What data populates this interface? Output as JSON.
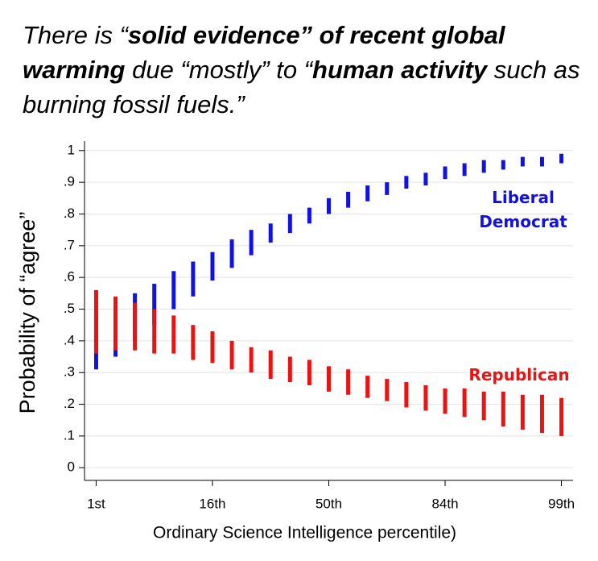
{
  "chart_data": {
    "type": "range",
    "title_parts": [
      {
        "text": "There is “",
        "bold": false
      },
      {
        "text": "solid evidence” of recent global warming",
        "bold": true
      },
      {
        "text": " due “mostly” to “",
        "bold": false
      },
      {
        "text": "human activity",
        "bold": true
      },
      {
        "text": " such as burning fossil fuels.”",
        "bold": false
      }
    ],
    "x_label": "Ordinary Science Intelligence percentile)",
    "y_label": "Probability of “agree”",
    "x": [
      -2,
      -1.8333,
      -1.6667,
      -1.5,
      -1.3333,
      -1.1667,
      -1,
      -0.8333,
      -0.6667,
      -0.5,
      -0.3333,
      -0.1667,
      0,
      0.1667,
      0.3333,
      0.5,
      0.6667,
      0.8333,
      1,
      1.1667,
      1.3333,
      1.5,
      1.6667,
      1.8333,
      2
    ],
    "series": [
      {
        "name": "Liberal Democrat",
        "color": "#1010e8",
        "low": [
          0.31,
          0.35,
          0.4,
          0.45,
          0.5,
          0.54,
          0.59,
          0.63,
          0.67,
          0.71,
          0.74,
          0.77,
          0.8,
          0.82,
          0.84,
          0.86,
          0.88,
          0.89,
          0.91,
          0.92,
          0.93,
          0.94,
          0.95,
          0.95,
          0.96
        ],
        "high": [
          0.48,
          0.51,
          0.55,
          0.58,
          0.62,
          0.65,
          0.68,
          0.72,
          0.75,
          0.77,
          0.8,
          0.82,
          0.85,
          0.87,
          0.89,
          0.9,
          0.92,
          0.93,
          0.95,
          0.96,
          0.97,
          0.97,
          0.98,
          0.98,
          0.99
        ]
      },
      {
        "name": "Republican",
        "color": "#ee1111",
        "low": [
          0.36,
          0.37,
          0.37,
          0.36,
          0.36,
          0.34,
          0.33,
          0.31,
          0.3,
          0.28,
          0.27,
          0.26,
          0.24,
          0.23,
          0.22,
          0.21,
          0.19,
          0.18,
          0.17,
          0.16,
          0.15,
          0.13,
          0.12,
          0.11,
          0.1
        ],
        "high": [
          0.56,
          0.54,
          0.52,
          0.5,
          0.48,
          0.45,
          0.43,
          0.4,
          0.38,
          0.37,
          0.35,
          0.34,
          0.32,
          0.31,
          0.29,
          0.28,
          0.27,
          0.26,
          0.25,
          0.25,
          0.24,
          0.24,
          0.23,
          0.23,
          0.22
        ]
      }
    ],
    "xlim": [
      -2.1,
      2.1
    ],
    "xticks": [
      {
        "value": -2,
        "label": "1st"
      },
      {
        "value": -1,
        "label": "16th"
      },
      {
        "value": 0,
        "label": "50th"
      },
      {
        "value": 1,
        "label": "84th"
      },
      {
        "value": 2,
        "label": "99th"
      }
    ],
    "ylim": [
      -0.04,
      1.03
    ],
    "yticks": [
      0,
      {
        "value": 0.1,
        "label": ".1"
      },
      {
        "value": 0.2,
        "label": ".2"
      },
      {
        "value": 0.3,
        "label": ".3"
      },
      {
        "value": 0.4,
        "label": ".4"
      },
      {
        "value": 0.5,
        "label": ".5"
      },
      {
        "value": 0.6,
        "label": ".6"
      },
      {
        "value": 0.7,
        "label": ".7"
      },
      {
        "value": 0.8,
        "label": ".8"
      },
      {
        "value": 0.9,
        "label": ".9"
      },
      1
    ],
    "grid": true
  }
}
